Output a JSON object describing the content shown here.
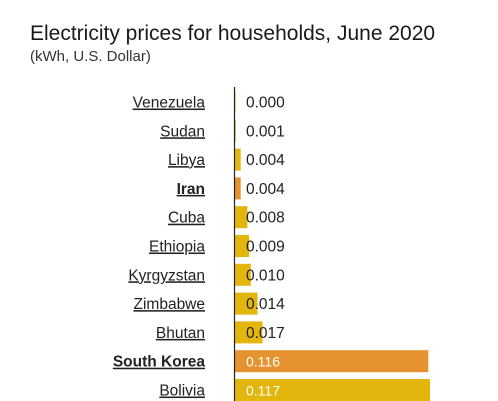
{
  "title": "Electricity prices for households, June 2020",
  "subtitle": "(kWh, U.S. Dollar)",
  "colors": {
    "default_bar": "#e3b60e",
    "highlight_bar": "#e59330",
    "axis": "#222222"
  },
  "chart_data": {
    "type": "bar",
    "orientation": "horizontal",
    "title": "Electricity prices for households, June 2020",
    "subtitle": "(kWh, U.S. Dollar)",
    "categories": [
      "Venezuela",
      "Sudan",
      "Libya",
      "Iran",
      "Cuba",
      "Ethiopia",
      "Kyrgyzstan",
      "Zimbabwe",
      "Bhutan",
      "South Korea",
      "Bolivia"
    ],
    "values": [
      0.0,
      0.001,
      0.004,
      0.004,
      0.008,
      0.009,
      0.01,
      0.014,
      0.017,
      0.116,
      0.117
    ],
    "value_labels": [
      "0.000",
      "0.001",
      "0.004",
      "0.004",
      "0.008",
      "0.009",
      "0.010",
      "0.014",
      "0.017",
      "0.116",
      "0.117"
    ],
    "highlighted": [
      "Iran",
      "South Korea"
    ],
    "xlim": [
      0,
      0.117
    ],
    "grid": false,
    "legend": "none"
  }
}
